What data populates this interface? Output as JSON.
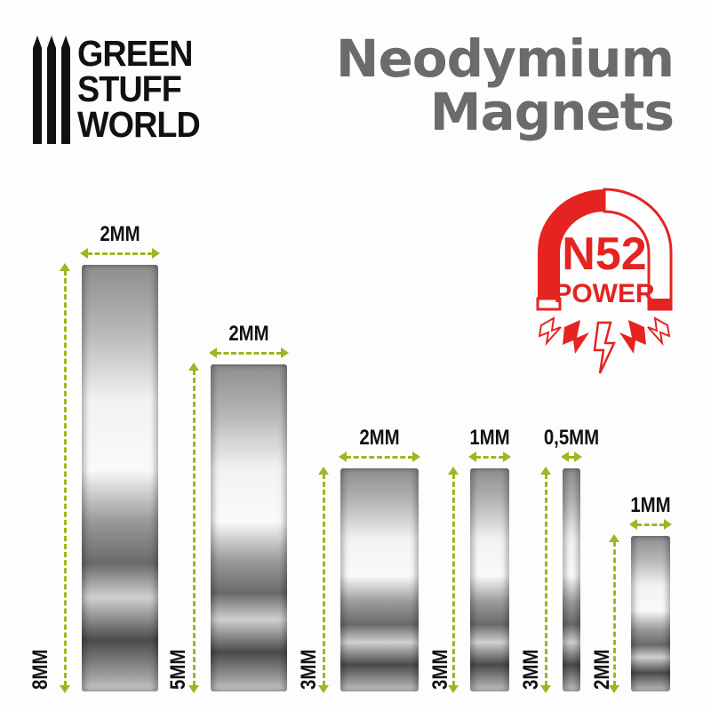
{
  "brand": {
    "logo_text": [
      "GREEN",
      "STUFF",
      "WORLD"
    ]
  },
  "title": {
    "line1": "Neodymium",
    "line2": "Magnets"
  },
  "badge": {
    "grade": "N52",
    "word": "POWER",
    "color": "#e52421"
  },
  "accent_color": "#9ab821",
  "magnets": [
    {
      "width": "2MM",
      "height": "8MM"
    },
    {
      "width": "2MM",
      "height": "5MM"
    },
    {
      "width": "2MM",
      "height": "3MM"
    },
    {
      "width": "1MM",
      "height": "3MM"
    },
    {
      "width": "0,5MM",
      "height": "3MM"
    },
    {
      "width": "1MM",
      "height": "2MM"
    }
  ]
}
